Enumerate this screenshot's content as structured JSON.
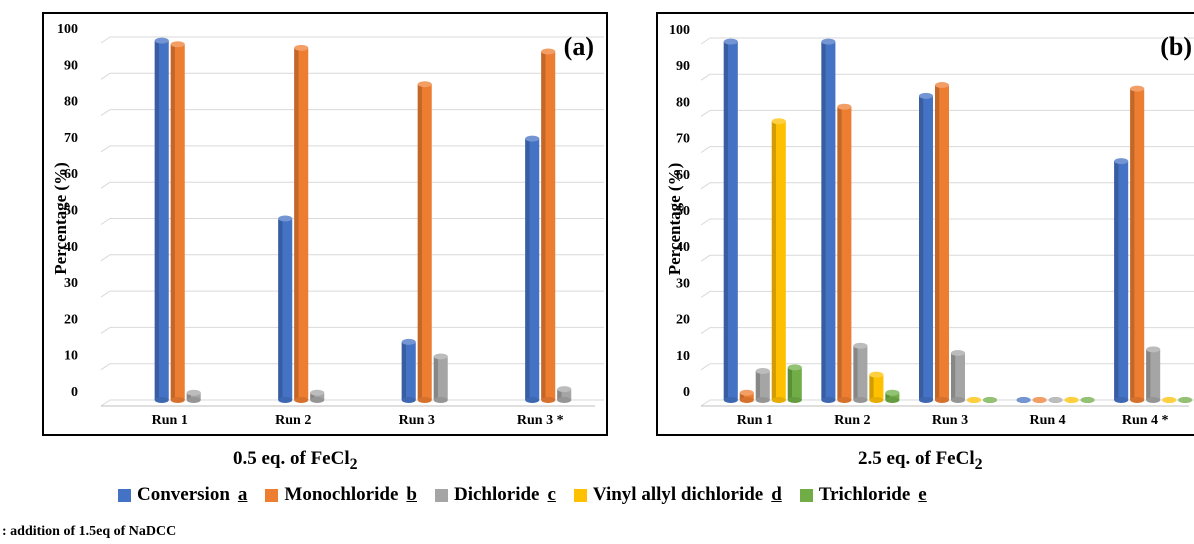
{
  "colors": {
    "conversion": "#4472C4",
    "monochloride": "#ED7D31",
    "dichloride": "#A5A5A5",
    "vinyl": "#FFC000",
    "trichloride": "#70AD47"
  },
  "legend": [
    {
      "name": "Conversion",
      "letter": "a",
      "color": "#4472C4"
    },
    {
      "name": "Monochloride",
      "letter": "b",
      "color": "#ED7D31"
    },
    {
      "name": "Dichloride",
      "letter": "c",
      "color": "#A5A5A5"
    },
    {
      "name": "Vinyl allyl dichloride",
      "letter": "d",
      "color": "#FFC000"
    },
    {
      "name": "Trichloride",
      "letter": "e",
      "color": "#70AD47"
    }
  ],
  "footnote": ": addition of 1.5eq of NaDCC",
  "chart_data": [
    {
      "type": "bar",
      "panel_label": "(a)",
      "title_text": "0.5 eq. of FeCl",
      "title_sub": "2",
      "ylabel": "Percentage (%)",
      "ylim": [
        0,
        100
      ],
      "yticks": [
        0,
        10,
        20,
        30,
        40,
        50,
        60,
        70,
        80,
        90,
        100
      ],
      "grid": true,
      "categories": [
        "Run 1",
        "Run 2",
        "Run 3",
        "Run 3 *"
      ],
      "series": [
        {
          "name": "Conversion",
          "color": "#4472C4",
          "values": [
            99,
            50,
            16,
            72
          ]
        },
        {
          "name": "Monochloride",
          "color": "#ED7D31",
          "values": [
            98,
            97,
            87,
            96
          ]
        },
        {
          "name": "Dichloride",
          "color": "#A5A5A5",
          "values": [
            2,
            2,
            12,
            3
          ]
        }
      ]
    },
    {
      "type": "bar",
      "panel_label": "(b)",
      "title_text": "2.5 eq. of FeCl",
      "title_sub": "2",
      "ylabel": "Percentage (%)",
      "ylim": [
        0,
        100
      ],
      "yticks": [
        0,
        10,
        20,
        30,
        40,
        50,
        60,
        70,
        80,
        90,
        100
      ],
      "grid": true,
      "categories": [
        "Run 1",
        "Run 2",
        "Run 3",
        "Run 4",
        "Run 4 *"
      ],
      "series": [
        {
          "name": "Conversion",
          "color": "#4472C4",
          "values": [
            99,
            99,
            84,
            0,
            66
          ]
        },
        {
          "name": "Monochloride",
          "color": "#ED7D31",
          "values": [
            2,
            81,
            87,
            0,
            86
          ]
        },
        {
          "name": "Dichloride",
          "color": "#A5A5A5",
          "values": [
            8,
            15,
            13,
            0,
            14
          ]
        },
        {
          "name": "Vinyl allyl dichloride",
          "color": "#FFC000",
          "values": [
            77,
            7,
            0,
            0,
            0
          ]
        },
        {
          "name": "Trichloride",
          "color": "#70AD47",
          "values": [
            9,
            2,
            0,
            0,
            0
          ]
        }
      ]
    }
  ]
}
